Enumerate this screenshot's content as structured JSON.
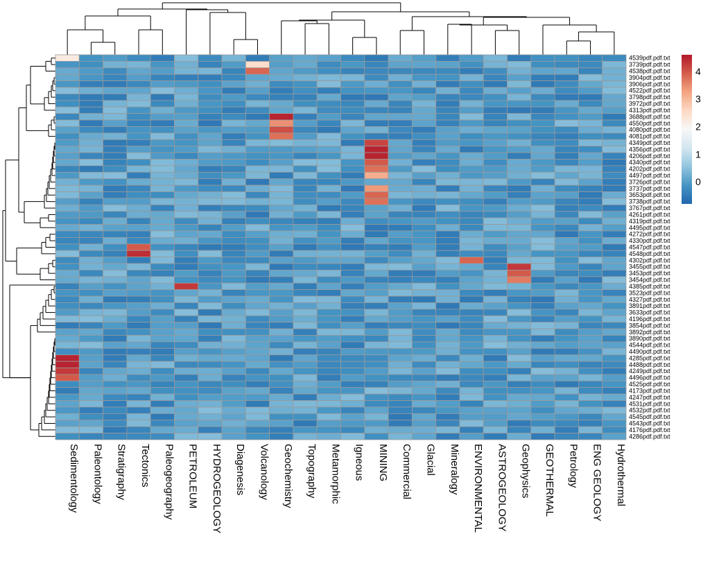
{
  "chart_data": {
    "type": "heatmap",
    "title": "",
    "xlabel": "",
    "ylabel": "",
    "columns": [
      "Sedimentology",
      "Paleontology",
      "Stratigraphy",
      "Tectonics",
      "Paleogeography",
      "PETROLEUM",
      "HYDROGEOLOGY",
      "Diagenesis",
      "Volcanology",
      "Geochemistry",
      "Topography",
      "Metamorphic",
      "Igneous",
      "MINING",
      "Commercial",
      "Glacial",
      "Mineralogy",
      "ENVIRONMENTAL",
      "ASTROGEOLOGY",
      "Geophysics",
      "GEOTHERMAL",
      "Petrology",
      "ENG GEOLOGY",
      "Hydrothermal"
    ],
    "rows": [
      "4539pdf.pdf.txt",
      "3739pdf.pdf.txt",
      "4538pdf.pdf.txt",
      "3904pdf.pdf.txt",
      "3906pdf.pdf.txt",
      "4522pdf.pdf.txt",
      "3798pdf.pdf.txt",
      "3972pdf.pdf.txt",
      "4313pdf.pdf.txt",
      "3688pdf.pdf.txt",
      "4550pdf.pdf.txt",
      "4080pdf.pdf.txt",
      "4081pdf.pdf.txt",
      "4349pdf.pdf.txt",
      "4356pdf.pdf.txt",
      "4206pdf.pdf.txt",
      "4340pdf.pdf.txt",
      "4202pdf.pdf.txt",
      "4497pdf.pdf.txt",
      "3726pdf.pdf.txt",
      "3737pdf.pdf.txt",
      "3653pdf.pdf.txt",
      "3738pdf.pdf.txt",
      "3767pdf.pdf.txt",
      "4261pdf.pdf.txt",
      "4319pdf.pdf.txt",
      "4495pdf.pdf.txt",
      "4272pdf.pdf.txt",
      "4330pdf.pdf.txt",
      "4547pdf.pdf.txt",
      "4548pdf.pdf.txt",
      "4302pdf.pdf.txt",
      "3455pdf.pdf.txt",
      "3453pdf.pdf.txt",
      "3454pdf.pdf.txt",
      "4385pdf.pdf.txt",
      "3523pdf.pdf.txt",
      "4327pdf.pdf.txt",
      "3891pdf.pdf.txt",
      "3633pdf.pdf.txt",
      "4196pdf.pdf.txt",
      "3854pdf.pdf.txt",
      "3892pdf.pdf.txt",
      "3890pdf.pdf.txt",
      "4544pdf.pdf.txt",
      "4490pdf.pdf.txt",
      "4285pdf.pdf.txt",
      "4488pdf.pdf.txt",
      "4249pdf.pdf.txt",
      "4496pdf.pdf.txt",
      "4525pdf.pdf.txt",
      "4173pdf.pdf.txt",
      "4247pdf.pdf.txt",
      "4531pdf.pdf.txt",
      "4532pdf.pdf.txt",
      "4545pdf.pdf.txt",
      "4543pdf.pdf.txt",
      "4176pdf.pdf.txt",
      "4286pdf.pdf.txt"
    ],
    "value_range": [
      -0.8,
      4.6
    ],
    "legend": {
      "position": "right",
      "ticks": [
        0,
        1,
        2,
        3,
        4
      ]
    },
    "colormap": {
      "low": "#2166ac",
      "mid": "#f7f7f7",
      "high": "#b2182b"
    },
    "grid": true,
    "highlights": [
      {
        "row": "4539pdf.pdf.txt",
        "column": "Sedimentology",
        "value": 2.3
      },
      {
        "row": "3739pdf.pdf.txt",
        "column": "Volcanology",
        "value": 2.6
      },
      {
        "row": "4538pdf.pdf.txt",
        "column": "Volcanology",
        "value": 3.9
      },
      {
        "row": "3688pdf.pdf.txt",
        "column": "Geochemistry",
        "value": 4.5
      },
      {
        "row": "4550pdf.pdf.txt",
        "column": "Geochemistry",
        "value": 3.5
      },
      {
        "row": "4080pdf.pdf.txt",
        "column": "Geochemistry",
        "value": 4.1
      },
      {
        "row": "4081pdf.pdf.txt",
        "column": "Geochemistry",
        "value": 3.8
      },
      {
        "row": "4349pdf.pdf.txt",
        "column": "MINING",
        "value": 4.2
      },
      {
        "row": "4356pdf.pdf.txt",
        "column": "MINING",
        "value": 4.5
      },
      {
        "row": "4206pdf.pdf.txt",
        "column": "MINING",
        "value": 4.5
      },
      {
        "row": "4340pdf.pdf.txt",
        "column": "MINING",
        "value": 4.0
      },
      {
        "row": "4202pdf.pdf.txt",
        "column": "MINING",
        "value": 3.8
      },
      {
        "row": "4497pdf.pdf.txt",
        "column": "MINING",
        "value": 3.2
      },
      {
        "row": "3737pdf.pdf.txt",
        "column": "MINING",
        "value": 3.4
      },
      {
        "row": "3653pdf.pdf.txt",
        "column": "MINING",
        "value": 3.9
      },
      {
        "row": "3738pdf.pdf.txt",
        "column": "MINING",
        "value": 3.8
      },
      {
        "row": "4547pdf.pdf.txt",
        "column": "Tectonics",
        "value": 4.0
      },
      {
        "row": "4548pdf.pdf.txt",
        "column": "Tectonics",
        "value": 4.4
      },
      {
        "row": "4302pdf.pdf.txt",
        "column": "ENVIRONMENTAL",
        "value": 3.9
      },
      {
        "row": "3455pdf.pdf.txt",
        "column": "Geophysics",
        "value": 4.3
      },
      {
        "row": "3453pdf.pdf.txt",
        "column": "Geophysics",
        "value": 4.0
      },
      {
        "row": "3454pdf.pdf.txt",
        "column": "Geophysics",
        "value": 3.7
      },
      {
        "row": "4385pdf.pdf.txt",
        "column": "PETROLEUM",
        "value": 4.3
      },
      {
        "row": "4285pdf.pdf.txt",
        "column": "Sedimentology",
        "value": 4.5
      },
      {
        "row": "4488pdf.pdf.txt",
        "column": "Sedimentology",
        "value": 4.5
      },
      {
        "row": "4249pdf.pdf.txt",
        "column": "Sedimentology",
        "value": 4.3
      },
      {
        "row": "4496pdf.pdf.txt",
        "column": "Sedimentology",
        "value": 4.0
      }
    ]
  }
}
